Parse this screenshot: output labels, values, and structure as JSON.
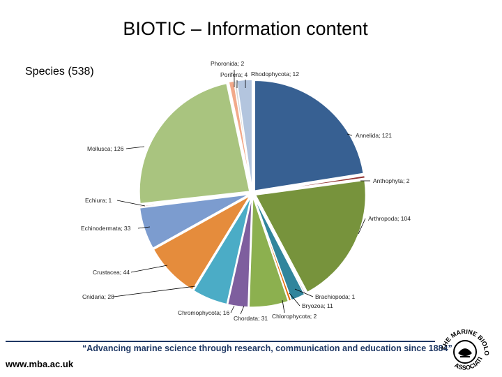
{
  "title": "BIOTIC – Information content",
  "subtitle": "Species (538)",
  "chart_data": {
    "type": "pie",
    "title": "BIOTIC – Information content",
    "total_label": "Species (538)",
    "slices": [
      {
        "label": "Rhodophycota; 12",
        "name": "Rhodophycota",
        "value": 12,
        "color": "#b3c5de"
      },
      {
        "label": "Annelida; 121",
        "name": "Annelida",
        "value": 121,
        "color": "#376092"
      },
      {
        "label": "Anthophyta; 2",
        "name": "Anthophyta",
        "value": 2,
        "color": "#953735"
      },
      {
        "label": "Arthropoda; 104",
        "name": "Arthropoda",
        "value": 104,
        "color": "#77933c"
      },
      {
        "label": "Brachiopoda; 1",
        "name": "Brachiopoda",
        "value": 1,
        "color": "#60497a"
      },
      {
        "label": "Bryozoa; 11",
        "name": "Bryozoa",
        "value": 11,
        "color": "#31859c"
      },
      {
        "label": "Chlorophycota; 2",
        "name": "Chlorophycota",
        "value": 2,
        "color": "#e46c0a"
      },
      {
        "label": "Chordata; 31",
        "name": "Chordata",
        "value": 31,
        "color": "#8cb04f"
      },
      {
        "label": "Chromophycota; 16",
        "name": "Chromophycota",
        "value": 16,
        "color": "#7e5e9e"
      },
      {
        "label": "Cnidaria; 28",
        "name": "Cnidaria",
        "value": 28,
        "color": "#4bacc6"
      },
      {
        "label": "Crustacea; 44",
        "name": "Crustacea",
        "value": 44,
        "color": "#e58c3c"
      },
      {
        "label": "Echinodermata; 33",
        "name": "Echinodermata",
        "value": 33,
        "color": "#7c9ccf"
      },
      {
        "label": "Echiura; 1",
        "name": "Echiura",
        "value": 1,
        "color": "#c0504d"
      },
      {
        "label": "Mollusca; 126",
        "name": "Mollusca",
        "value": 126,
        "color": "#a9c47f"
      },
      {
        "label": "Porifera; 4",
        "name": "Porifera",
        "value": 4,
        "color": "#f2a98a"
      },
      {
        "label": "Phoronida; 2",
        "name": "Phoronida",
        "value": 2,
        "color": "#d9d9d9"
      }
    ]
  },
  "footer": {
    "quote": "“Advancing marine science through research, communication and education since 1884”",
    "url": "www.mba.ac.uk",
    "logo_text": "THE MARINE BIOLOGICAL ASSOCIATION"
  }
}
